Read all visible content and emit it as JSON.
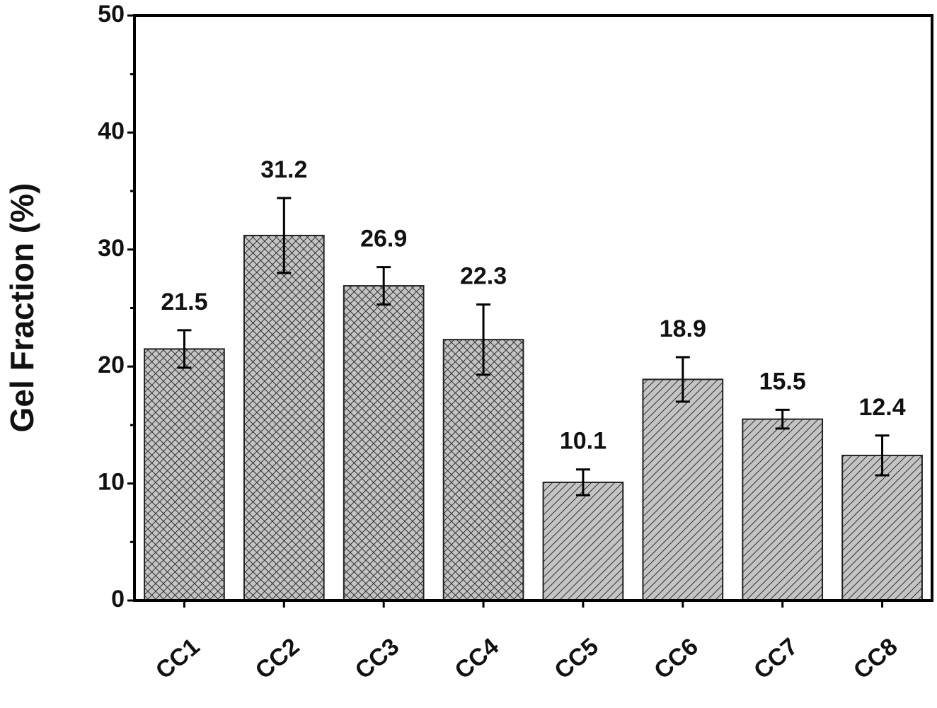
{
  "chart_data": {
    "type": "bar",
    "y_label": "Gel Fraction (%)",
    "categories": [
      "CC1",
      "CC2",
      "CC3",
      "CC4",
      "CC5",
      "CC6",
      "CC7",
      "CC8"
    ],
    "values": [
      21.5,
      31.2,
      26.9,
      22.3,
      10.1,
      18.9,
      15.5,
      12.4
    ],
    "errors": [
      1.6,
      3.2,
      1.6,
      3.0,
      1.1,
      1.9,
      0.8,
      1.7
    ],
    "hatch": [
      "cross",
      "cross",
      "cross",
      "cross",
      "diagonal",
      "diagonal",
      "diagonal",
      "diagonal"
    ],
    "color": "#c4c4c4",
    "ylim": [
      0,
      50
    ],
    "yticks": [
      0,
      10,
      20,
      30,
      40,
      50
    ]
  }
}
